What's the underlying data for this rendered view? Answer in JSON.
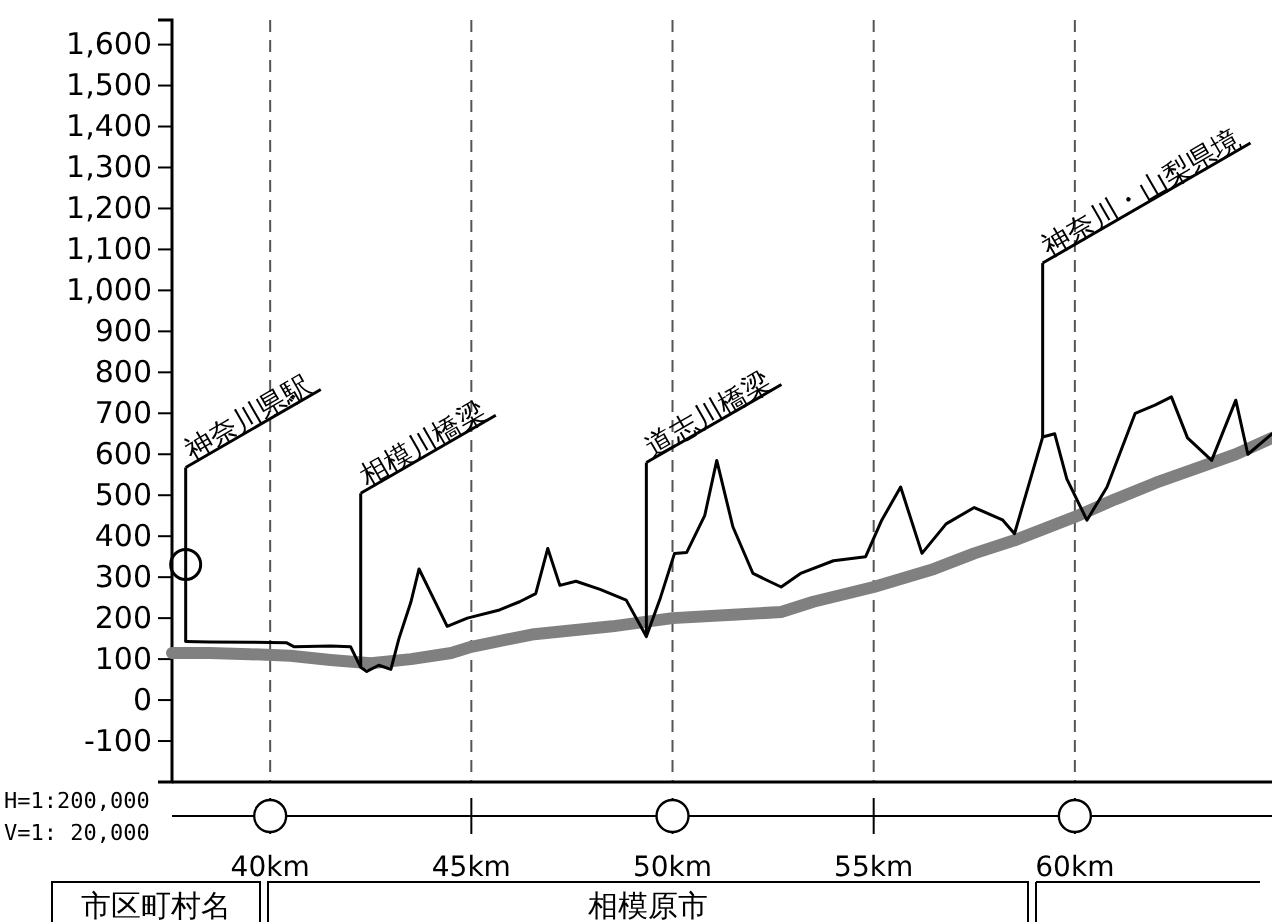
{
  "chart_data": {
    "type": "line",
    "xlim": [
      37.56,
      64.9
    ],
    "ylim": [
      -200,
      1660
    ],
    "xticks": [
      {
        "value": 40,
        "label": "40km"
      },
      {
        "value": 45,
        "label": "45km"
      },
      {
        "value": 50,
        "label": "50km"
      },
      {
        "value": 55,
        "label": "55km"
      },
      {
        "value": 60,
        "label": "60km"
      }
    ],
    "yticks": [
      -100,
      0,
      100,
      200,
      300,
      400,
      500,
      600,
      700,
      800,
      900,
      {
        "value": 1000,
        "label": "1,000"
      },
      {
        "value": 1100,
        "label": "1,100"
      },
      {
        "value": 1200,
        "label": "1,200"
      },
      {
        "value": 1300,
        "label": "1,300"
      },
      {
        "value": 1400,
        "label": "1,400"
      },
      {
        "value": 1500,
        "label": "1,500"
      },
      {
        "value": 1600,
        "label": "1,600"
      }
    ],
    "grid": "x",
    "marker": "none",
    "series": [
      {
        "color": "#808080",
        "x": [
          37.56,
          38.5,
          39.5,
          40.5,
          41.5,
          42.5,
          43.5,
          44.5,
          45,
          46.5,
          48.5,
          50,
          51.5,
          52.7,
          53.5,
          55,
          56.5,
          57.5,
          58.5,
          60,
          61,
          62,
          63,
          64,
          64.9
        ],
        "values": [
          115,
          115,
          112,
          108,
          98,
          90,
          100,
          115,
          130,
          160,
          180,
          200,
          208,
          215,
          240,
          276,
          320,
          358,
          390,
          447,
          490,
          530,
          565,
          600,
          640
        ]
      },
      {
        "color": "#000000",
        "x": [
          37.9,
          38.5,
          39.5,
          40.4,
          40.6,
          41.5,
          42.0,
          42.25,
          42.4,
          42.7,
          43.0,
          43.2,
          43.5,
          43.7,
          44.0,
          44.4,
          44.9,
          45.7,
          46.2,
          46.6,
          46.9,
          47.2,
          47.6,
          48.2,
          48.85,
          49.35,
          49.7,
          50.05,
          50.35,
          50.8,
          51.1,
          51.5,
          52.0,
          52.7,
          53.2,
          54.0,
          54.8,
          55.2,
          55.67,
          56.2,
          56.8,
          57.5,
          58.2,
          58.5,
          59.2,
          59.5,
          59.8,
          60.3,
          60.8,
          61.5,
          61.99,
          62.4,
          62.8,
          63.4,
          64.0,
          64.3,
          64.9
        ],
        "values": [
          143,
          142,
          141,
          140,
          130,
          132,
          130,
          80,
          70,
          85,
          75,
          150,
          240,
          320,
          260,
          180,
          200,
          220,
          240,
          260,
          370,
          280,
          290,
          270,
          244,
          155,
          250,
          358,
          360,
          450,
          585,
          423,
          309,
          276,
          310,
          340,
          350,
          439,
          520,
          358,
          430,
          470,
          440,
          406,
          642,
          650,
          540,
          439,
          520,
          700,
          720,
          740,
          640,
          585,
          732,
          600,
          650
        ]
      }
    ],
    "annotations": [
      {
        "text": "神奈川県駅",
        "x": 37.9,
        "y": 143
      },
      {
        "text": "相模川橋梁",
        "x": 42.25,
        "y": 80
      },
      {
        "text": "道志川橋梁",
        "x": 49.35,
        "y": 155
      },
      {
        "text": "神奈川・山梨県境",
        "x": 59.2,
        "y": 642
      },
      "H=1:200,000",
      "V=1: 20,000",
      "市区町村名",
      "相模原市"
    ]
  }
}
